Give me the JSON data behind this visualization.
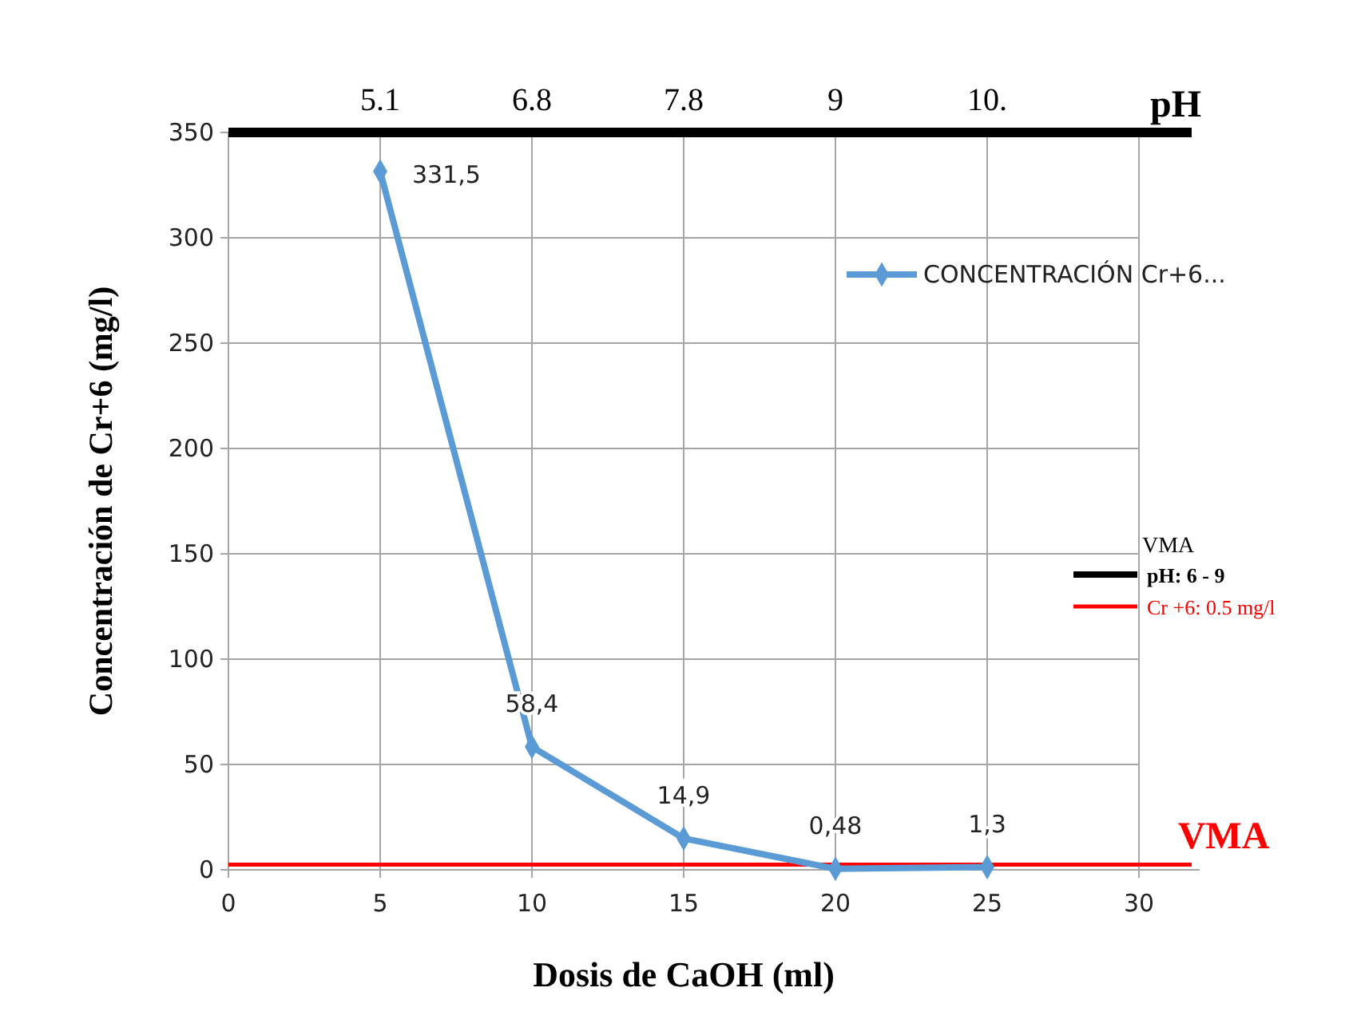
{
  "chart_data": {
    "type": "line",
    "xlabel": "Dosis de CaOH  (ml)",
    "ylabel": "Concentración  de Cr+6  (mg/l)",
    "x": [
      5,
      10,
      15,
      20,
      25
    ],
    "series": [
      {
        "name": "CONCENTRACIÓN Cr+6...",
        "color": "#5b9bd5",
        "values": [
          331.5,
          58.4,
          14.9,
          0.48,
          1.3
        ],
        "value_labels": [
          "331,5",
          "58,4",
          "14,9",
          "0,48",
          "1,3"
        ]
      }
    ],
    "xlim": [
      0,
      32
    ],
    "xticks": [
      0,
      5,
      10,
      15,
      20,
      25,
      30
    ],
    "ylim": [
      0,
      350
    ],
    "yticks": [
      0,
      50,
      100,
      150,
      200,
      250,
      300,
      350
    ],
    "ref_lines": [
      {
        "axis": "y",
        "value": 2.5,
        "label": "VMA",
        "color": "#ff0000"
      },
      {
        "axis": "y",
        "value": 350,
        "label": "pH",
        "color": "#000000"
      }
    ],
    "annotations": [
      "VMA",
      "pH: 6 - 9",
      "Cr +6: 0.5 mg/l",
      {
        "text": "5.1",
        "x": 5,
        "y": 350
      },
      {
        "text": "6.8",
        "x": 10,
        "y": 350
      },
      {
        "text": "7.8",
        "x": 15,
        "y": 350
      },
      {
        "text": "9",
        "x": 20,
        "y": 350
      },
      {
        "text": "10.",
        "x": 25,
        "y": 350
      }
    ],
    "grid": true,
    "legend": "right",
    "marker": "diamond",
    "line_style": "solid"
  }
}
